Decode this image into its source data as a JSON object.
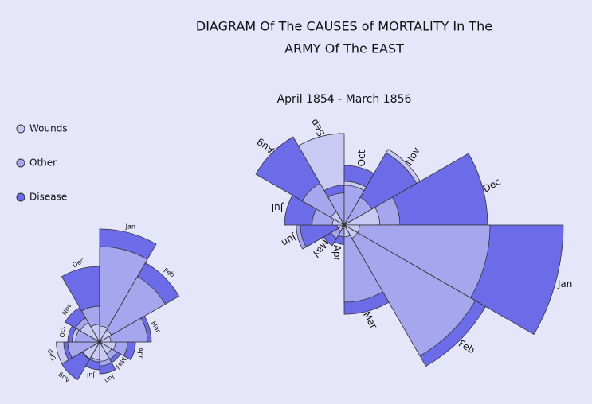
{
  "chart_data": [
    {
      "type": "rose",
      "title": "DIAGRAM Of The CAUSES of MORTALITY In The",
      "title_line2": "ARMY Of The EAST",
      "subtitle": "April 1854 - March 1856",
      "categories": [
        "Apr",
        "May",
        "Jun",
        "Jul",
        "Aug",
        "Sep",
        "Oct",
        "Nov",
        "Dec",
        "Jan",
        "Feb",
        "Mar"
      ],
      "series": [
        {
          "name": "Wounds",
          "color": "#c9c9f4",
          "values": [
            0.3,
            1,
            1,
            3,
            5,
            179,
            41,
            164,
            27,
            5,
            5,
            3
          ]
        },
        {
          "name": "Other",
          "color": "#a6a6ef",
          "values": [
            3,
            5,
            49,
            22,
            50,
            22,
            34,
            22,
            66,
            453,
            488,
            127
          ]
        },
        {
          "name": "Disease",
          "color": "#6c6ce8",
          "values": [
            8,
            12,
            41,
            76,
            222,
            34,
            76,
            149,
            438,
            1022,
            568,
            170
          ]
        }
      ]
    },
    {
      "type": "rose",
      "categories": [
        "Apr",
        "May",
        "Jun",
        "Jul",
        "Aug",
        "Sep",
        "Oct",
        "Nov",
        "Dec",
        "Jan",
        "Feb",
        "Mar"
      ],
      "series": [
        {
          "name": "Wounds",
          "color": "#c9c9f4",
          "values": [
            20,
            15,
            30,
            25,
            30,
            150,
            60,
            40,
            25,
            20,
            15,
            10
          ]
        },
        {
          "name": "Other",
          "color": "#a6a6ef",
          "values": [
            62,
            32,
            46,
            32,
            32,
            81,
            46,
            62,
            103,
            730,
            458,
            183
          ]
        },
        {
          "name": "Disease",
          "color": "#6c6ce8",
          "values": [
            103,
            46,
            81,
            62,
            153,
            103,
            81,
            127,
            458,
            1023,
            671,
            214
          ]
        }
      ]
    }
  ]
}
